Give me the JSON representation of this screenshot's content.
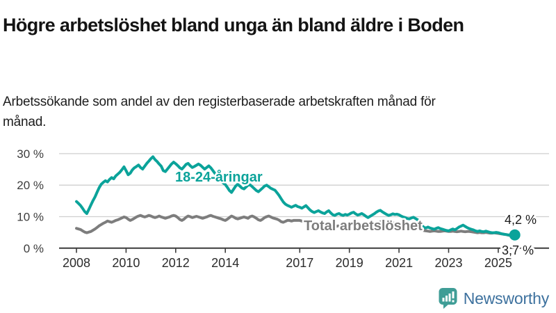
{
  "header": {
    "title": "Högre arbetslöshet bland unga än bland äldre i Boden",
    "subtitle": "Arbetssökande som andel av den registerbaserade arbetskraften månad för månad."
  },
  "chart_data": {
    "type": "line",
    "title": "Högre arbetslöshet bland unga än bland äldre i Boden",
    "xlabel": "",
    "ylabel": "",
    "grid": true,
    "legend_position": "inline-labels",
    "xlim": [
      2008.0,
      2025.83
    ],
    "ylim": [
      0,
      30
    ],
    "x_frequency": "monthly",
    "x_start": "2008-01",
    "x_end": "2025-09",
    "x_axis": {
      "tick_years": [
        2008,
        2010,
        2012,
        2014,
        2017,
        2019,
        2021,
        2023,
        2025
      ],
      "tick_labels": [
        "2008",
        "2010",
        "2012",
        "2014",
        "2017",
        "2019",
        "2021",
        "2023",
        "2025"
      ]
    },
    "y_axis": {
      "ticks": [
        {
          "value": 30,
          "label": "30 %"
        },
        {
          "value": 20,
          "label": "20 %"
        },
        {
          "value": 10,
          "label": "10 %"
        },
        {
          "value": 0,
          "label": "0 %"
        }
      ]
    },
    "series": [
      {
        "name": "Total arbetslöshet",
        "color": "#7d7d7d",
        "end_label": "3,7 %",
        "end_value": 3.7,
        "values": [
          6.3,
          6.1,
          5.9,
          5.5,
          5.1,
          4.9,
          5.1,
          5.3,
          5.7,
          6.1,
          6.6,
          7.1,
          7.5,
          7.9,
          8.2,
          8.6,
          8.4,
          8.2,
          8.5,
          8.8,
          9.0,
          9.3,
          9.6,
          9.9,
          9.7,
          9.2,
          8.8,
          9.1,
          9.5,
          9.9,
          10.2,
          10.4,
          10.1,
          9.9,
          10.1,
          10.4,
          10.2,
          9.9,
          9.7,
          9.9,
          10.2,
          9.9,
          9.7,
          9.5,
          9.7,
          9.9,
          10.2,
          10.4,
          10.2,
          9.7,
          9.1,
          8.8,
          9.2,
          9.8,
          10.2,
          10.0,
          9.7,
          9.9,
          10.1,
          9.9,
          9.7,
          9.5,
          9.7,
          9.9,
          10.2,
          10.4,
          10.1,
          9.9,
          9.7,
          9.5,
          9.3,
          9.0,
          8.8,
          9.2,
          9.7,
          10.2,
          9.9,
          9.5,
          9.3,
          9.5,
          9.7,
          9.9,
          9.7,
          9.5,
          10.0,
          10.2,
          9.9,
          9.5,
          9.0,
          8.8,
          9.2,
          9.7,
          10.0,
          10.2,
          9.9,
          9.6,
          9.4,
          9.2,
          8.9,
          8.4,
          8.2,
          8.5,
          8.8,
          8.8,
          8.6,
          8.8,
          8.8,
          8.8,
          8.8,
          8.6,
          8.4,
          8.2,
          8.0,
          7.9,
          8.1,
          8.2,
          8.0,
          7.9,
          7.7,
          7.6,
          7.4,
          7.3,
          7.2,
          7.0,
          6.9,
          6.8,
          7.0,
          7.1,
          6.9,
          6.8,
          6.7,
          6.6,
          6.6,
          6.7,
          6.8,
          6.6,
          6.5,
          6.4,
          6.6,
          6.7,
          6.5,
          6.4,
          6.5,
          6.6,
          6.8,
          7.1,
          7.7,
          8.3,
          8.6,
          8.8,
          8.6,
          8.4,
          8.2,
          8.0,
          7.9,
          7.8,
          7.7,
          7.6,
          7.4,
          7.2,
          7.0,
          6.8,
          6.7,
          6.6,
          6.4,
          6.2,
          6.0,
          5.8,
          5.6,
          5.5,
          5.4,
          5.3,
          5.4,
          5.5,
          5.4,
          5.3,
          5.3,
          5.4,
          5.5,
          5.4,
          5.3,
          5.3,
          5.4,
          5.3,
          5.2,
          5.3,
          5.4,
          5.3,
          5.2,
          5.3,
          5.3,
          5.2,
          5.1,
          5.0,
          4.9,
          5.0,
          4.9,
          4.9,
          5.0,
          4.9,
          4.8,
          4.8,
          4.9,
          4.8,
          4.7,
          4.6,
          4.5,
          4.4,
          4.3,
          4.1,
          4.0,
          3.8,
          3.7
        ]
      },
      {
        "name": "18-24-åringar",
        "color": "#0ba39a",
        "end_label": "4,2 %",
        "end_value": 4.2,
        "end_dot": true,
        "values": [
          14.8,
          14.2,
          13.5,
          12.6,
          11.6,
          11.0,
          12.3,
          13.7,
          15.1,
          16.3,
          17.8,
          19.2,
          20.3,
          20.9,
          21.4,
          21.0,
          21.8,
          22.4,
          22.0,
          22.9,
          23.5,
          24.1,
          24.9,
          25.8,
          24.6,
          23.3,
          23.8,
          24.8,
          25.5,
          25.9,
          26.4,
          25.6,
          25.1,
          26.0,
          26.9,
          27.6,
          28.4,
          29.0,
          28.1,
          27.5,
          26.7,
          26.0,
          24.6,
          24.3,
          25.1,
          25.9,
          26.7,
          27.3,
          26.8,
          26.2,
          25.5,
          25.1,
          25.8,
          26.6,
          26.9,
          26.2,
          25.6,
          25.9,
          26.3,
          26.7,
          26.3,
          25.7,
          25.1,
          25.6,
          26.1,
          25.5,
          24.6,
          23.7,
          22.8,
          22.0,
          21.3,
          20.7,
          20.2,
          19.3,
          18.3,
          17.7,
          18.7,
          19.7,
          20.3,
          19.7,
          19.1,
          18.8,
          19.4,
          20.0,
          20.1,
          19.5,
          18.9,
          18.3,
          17.9,
          18.5,
          19.1,
          19.7,
          20.0,
          19.5,
          19.0,
          18.7,
          18.4,
          17.6,
          16.7,
          15.7,
          14.7,
          14.0,
          13.6,
          13.3,
          13.0,
          13.3,
          13.6,
          13.2,
          13.0,
          12.7,
          13.1,
          13.5,
          12.8,
          12.1,
          11.6,
          11.3,
          11.6,
          11.9,
          11.5,
          11.2,
          11.0,
          11.5,
          11.9,
          11.2,
          10.6,
          10.4,
          10.8,
          11.0,
          10.6,
          10.4,
          10.7,
          10.5,
          10.8,
          11.2,
          11.4,
          10.9,
          10.5,
          10.7,
          11.0,
          10.6,
          10.1,
          9.7,
          10.1,
          10.5,
          10.9,
          11.4,
          11.8,
          12.0,
          11.5,
          11.1,
          10.7,
          10.4,
          10.6,
          10.9,
          10.7,
          10.8,
          10.6,
          10.2,
          9.9,
          9.7,
          9.4,
          9.3,
          9.6,
          9.8,
          9.4,
          9.0,
          8.5,
          7.4,
          6.6,
          6.4,
          6.7,
          6.4,
          6.2,
          6.0,
          6.3,
          6.5,
          6.2,
          6.0,
          5.8,
          5.6,
          5.5,
          5.8,
          6.1,
          5.8,
          6.2,
          6.7,
          7.0,
          7.3,
          6.9,
          6.5,
          6.2,
          6.0,
          5.8,
          5.5,
          5.3,
          5.5,
          5.3,
          5.2,
          5.4,
          5.2,
          5.0,
          4.9,
          4.9,
          5.0,
          4.9,
          4.7,
          4.5,
          4.4,
          4.3,
          4.2,
          4.3,
          4.2,
          4.2
        ]
      }
    ]
  },
  "branding": {
    "logo_text": "Newsworthy",
    "icon": "newsworthy-bar-chart-bubble-icon",
    "icon_color": "#3f9d96",
    "text_color": "#3d719e"
  },
  "colors": {
    "young_series": "#0ba39a",
    "total_series": "#7d7d7d",
    "grid": "#cfcfcf",
    "axis": "#3b3b3b"
  }
}
